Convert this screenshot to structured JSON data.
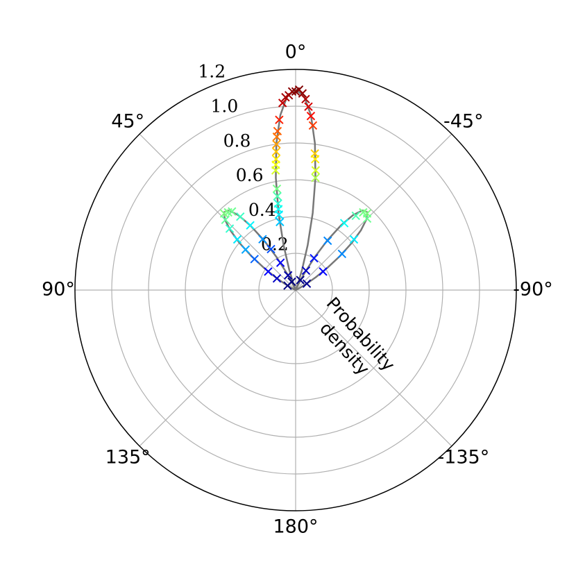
{
  "chart_data": {
    "type": "polar",
    "theta_zero": "top",
    "theta_direction": "counterclockwise",
    "rlim": [
      0,
      1.2
    ],
    "rticks": [
      0.2,
      0.4,
      0.6,
      0.8,
      {
        "value": 1,
        "label": "1.0"
      },
      {
        "value": 1.2,
        "label": "1.2"
      }
    ],
    "thetaticks": [
      {
        "value": 0,
        "label": "0°"
      },
      {
        "value": 45,
        "label": "45°"
      },
      {
        "value": 90,
        "label": "90°"
      },
      {
        "value": 135,
        "label": "135°"
      },
      {
        "value": 180,
        "label": "180°"
      },
      {
        "value": -135,
        "label": "-135°"
      },
      {
        "value": -90,
        "label": "-90°"
      },
      {
        "value": -45,
        "label": "-45°"
      }
    ],
    "grid": true,
    "ylabel": "Probability\ndensity",
    "series": [
      {
        "type": "line",
        "color": "#777777",
        "theta": [
          -67.5,
          -65,
          -62.5,
          -60,
          -57.5,
          -55,
          -52.5,
          -50,
          -47.5,
          -45,
          -42.5,
          -40,
          -37.5,
          -35,
          -32.5,
          -30,
          -27.5,
          -25,
          -22.5,
          -20,
          -17.5,
          -15,
          -12.5,
          -10,
          -7.5,
          -5,
          -2.5,
          0,
          2.5,
          5,
          7.5,
          10,
          12.5,
          15,
          17.5,
          20,
          22.5,
          25,
          27.5,
          30,
          32.5,
          35,
          37.5,
          40,
          42.5,
          45,
          47.5,
          50,
          52.5,
          55,
          57.5,
          60,
          62.5,
          65,
          67.5
        ],
        "r": [
          0,
          0.006,
          0.027,
          0.068,
          0.13,
          0.21,
          0.303,
          0.398,
          0.482,
          0.545,
          0.575,
          0.565,
          0.515,
          0.429,
          0.32,
          0.204,
          0.1,
          0.027,
          0,
          0.029,
          0.116,
          0.254,
          0.429,
          0.62,
          0.804,
          0.955,
          1.055,
          1.09,
          1.055,
          0.955,
          0.804,
          0.62,
          0.429,
          0.254,
          0.116,
          0.029,
          0,
          0.027,
          0.1,
          0.204,
          0.32,
          0.429,
          0.515,
          0.565,
          0.575,
          0.545,
          0.482,
          0.398,
          0.303,
          0.21,
          0.13,
          0.068,
          0.027,
          0.006,
          0
        ]
      },
      {
        "type": "scatter",
        "marker": "x",
        "colormap": "jet",
        "theta": [
          0,
          1,
          -1,
          2,
          -2,
          3,
          -3,
          4,
          -4,
          5.5,
          6.5,
          7,
          7.5,
          8,
          8.5,
          9,
          9.5,
          10.5,
          11,
          11.5,
          12,
          12.5,
          13,
          -5,
          -6,
          -8,
          -8.5,
          -9.5,
          -10,
          25,
          27,
          29,
          31,
          33,
          35,
          37,
          39,
          41,
          43,
          45,
          47,
          49,
          51,
          53,
          56,
          58,
          61,
          -25,
          -28,
          -30,
          -33,
          -36,
          -39,
          -41,
          -43,
          -45,
          -49,
          -52,
          -56,
          -60
        ],
        "r": [
          1.08,
          1.08,
          1.09,
          1.06,
          1.07,
          1.05,
          1.04,
          1.02,
          1.0,
          0.93,
          0.87,
          0.84,
          0.8,
          0.76,
          0.72,
          0.69,
          0.66,
          0.56,
          0.52,
          0.48,
          0.45,
          0.42,
          0.38,
          0.95,
          0.9,
          0.75,
          0.72,
          0.66,
          0.62,
          0.05,
          0.09,
          0.17,
          0.26,
          0.33,
          0.43,
          0.5,
          0.55,
          0.56,
          0.57,
          0.54,
          0.49,
          0.42,
          0.35,
          0.28,
          0.18,
          0.12,
          0.05,
          0.06,
          0.12,
          0.2,
          0.32,
          0.45,
          0.52,
          0.56,
          0.57,
          0.55,
          0.42,
          0.32,
          0.18,
          0.07
        ]
      }
    ]
  }
}
